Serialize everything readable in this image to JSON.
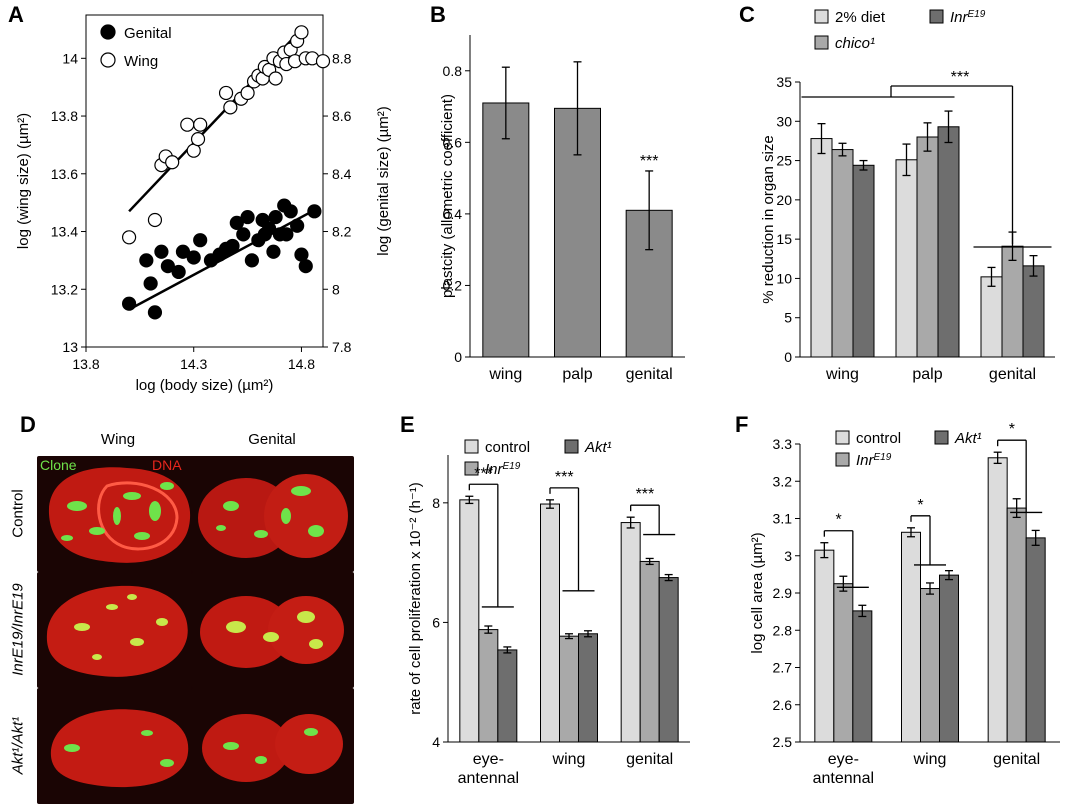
{
  "panel_letters": [
    "A",
    "B",
    "C",
    "D",
    "E",
    "F"
  ],
  "chart_data": [
    {
      "id": "A",
      "type": "scatter",
      "xlabel": "log (body size) (µm²)",
      "ylabel": "log (wing size) (µm²)",
      "y2label": "log (genital size) (µm²)",
      "xlim": [
        13.8,
        14.9
      ],
      "xticks": [
        "13.8",
        "14.3",
        "14.8"
      ],
      "xtick_values": [
        13.8,
        14.3,
        14.8
      ],
      "ylim": [
        13,
        14.15
      ],
      "yticks": [
        "13",
        "13.2",
        "13.4",
        "13.6",
        "13.8",
        "14"
      ],
      "ytick_values": [
        13,
        13.2,
        13.4,
        13.6,
        13.8,
        14
      ],
      "y2lim": [
        7.8,
        8.95
      ],
      "y2ticks": [
        "7.8",
        "8",
        "8.2",
        "8.4",
        "8.6",
        "8.8"
      ],
      "y2tick_values": [
        7.8,
        8,
        8.2,
        8.4,
        8.6,
        8.8
      ],
      "legend": "top-left",
      "series": [
        {
          "name": "Genital",
          "marker": "filled",
          "axis": "right",
          "x": [
            14.0,
            14.08,
            14.1,
            14.12,
            14.15,
            14.18,
            14.23,
            14.25,
            14.3,
            14.33,
            14.38,
            14.42,
            14.45,
            14.48,
            14.5,
            14.53,
            14.55,
            14.57,
            14.6,
            14.62,
            14.63,
            14.65,
            14.67,
            14.68,
            14.7,
            14.72,
            14.73,
            14.75,
            14.78,
            14.8,
            14.82,
            14.86
          ],
          "y": [
            7.95,
            8.1,
            8.02,
            7.92,
            8.13,
            8.08,
            8.06,
            8.13,
            8.11,
            8.17,
            8.1,
            8.12,
            8.14,
            8.15,
            8.23,
            8.19,
            8.25,
            8.1,
            8.17,
            8.24,
            8.19,
            8.21,
            8.13,
            8.25,
            8.19,
            8.29,
            8.19,
            8.27,
            8.22,
            8.12,
            8.08,
            8.27
          ],
          "fit": [
            [
              14.0,
              7.93
            ],
            [
              14.85,
              8.27
            ]
          ]
        },
        {
          "name": "Wing",
          "marker": "open",
          "axis": "left",
          "x": [
            14.0,
            14.12,
            14.15,
            14.17,
            14.2,
            14.27,
            14.3,
            14.32,
            14.33,
            14.45,
            14.47,
            14.52,
            14.55,
            14.58,
            14.6,
            14.62,
            14.63,
            14.65,
            14.67,
            14.68,
            14.7,
            14.72,
            14.73,
            14.75,
            14.77,
            14.78,
            14.8,
            14.82,
            14.85,
            14.9
          ],
          "y": [
            13.38,
            13.44,
            13.63,
            13.66,
            13.64,
            13.77,
            13.68,
            13.72,
            13.77,
            13.88,
            13.83,
            13.86,
            13.88,
            13.92,
            13.94,
            13.93,
            13.97,
            13.96,
            14.0,
            13.93,
            13.99,
            14.02,
            13.98,
            14.03,
            13.99,
            14.06,
            14.09,
            14.0,
            14.0,
            13.99
          ],
          "fit": [
            [
              14.0,
              13.47
            ],
            [
              14.8,
              14.1
            ]
          ]
        }
      ]
    },
    {
      "id": "B",
      "type": "bar",
      "categories": [
        "wing",
        "palp",
        "genital"
      ],
      "values": [
        0.71,
        0.695,
        0.41
      ],
      "errors": [
        0.1,
        0.13,
        0.11
      ],
      "ylabel": "plastcity (allometric coefficient)",
      "ylim": [
        0,
        0.9
      ],
      "yticks": [
        "0",
        "0.2",
        "0.4",
        "0.6",
        "0.8"
      ],
      "ytick_values": [
        0,
        0.2,
        0.4,
        0.6,
        0.8
      ],
      "color": "#8a8a8a",
      "annotations": [
        {
          "text": "***",
          "category": "genital"
        }
      ]
    },
    {
      "id": "C",
      "type": "bar",
      "categories": [
        "wing",
        "palp",
        "genital"
      ],
      "ylabel": "% reduction in organ size",
      "ylim": [
        0,
        35
      ],
      "yticks": [
        "0",
        "5",
        "10",
        "15",
        "20",
        "25",
        "30",
        "35"
      ],
      "ytick_values": [
        0,
        5,
        10,
        15,
        20,
        25,
        30,
        35
      ],
      "legend": "top",
      "series": [
        {
          "name": "2% diet",
          "values": [
            27.8,
            25.1,
            10.2
          ],
          "errors": [
            1.9,
            2.0,
            1.2
          ],
          "color": "#dcdcdc"
        },
        {
          "name": "chico¹",
          "values": [
            26.4,
            28.0,
            14.1
          ],
          "errors": [
            0.8,
            1.8,
            1.8
          ],
          "color": "#a9a9a9"
        },
        {
          "name": "InrE19",
          "values": [
            24.4,
            29.3,
            11.6
          ],
          "errors": [
            0.6,
            2.0,
            1.3
          ],
          "color": "#6e6e6e"
        }
      ],
      "annotations": [
        {
          "text": "***"
        }
      ]
    },
    {
      "id": "E",
      "type": "bar",
      "categories": [
        "eye-\nantennal",
        "wing",
        "genital"
      ],
      "ylabel": "rate of cell proliferation x 10⁻² (h⁻¹)",
      "ylim": [
        4,
        8.8
      ],
      "yticks": [
        "4",
        "6",
        "8"
      ],
      "ytick_values": [
        4,
        6,
        8
      ],
      "legend": "top",
      "series": [
        {
          "name": "control",
          "values": [
            8.05,
            7.98,
            7.67
          ],
          "errors": [
            0.06,
            0.07,
            0.09
          ],
          "color": "#dcdcdc"
        },
        {
          "name": "InrE19",
          "values": [
            5.88,
            5.77,
            7.02
          ],
          "errors": [
            0.06,
            0.04,
            0.05
          ],
          "color": "#a9a9a9"
        },
        {
          "name": "Akt¹",
          "values": [
            5.54,
            5.81,
            6.75
          ],
          "errors": [
            0.05,
            0.05,
            0.05
          ],
          "color": "#6e6e6e"
        }
      ],
      "annotations": [
        {
          "text": "***"
        },
        {
          "text": "***"
        },
        {
          "text": "***"
        }
      ]
    },
    {
      "id": "F",
      "type": "bar",
      "categories": [
        "eye-\nantennal",
        "wing",
        "genital"
      ],
      "ylabel": "log cell area (µm²)",
      "ylim": [
        2.5,
        3.3
      ],
      "yticks": [
        "2.5",
        "2.6",
        "2.7",
        "2.8",
        "2.9",
        "3",
        "3.1",
        "3.2",
        "3.3"
      ],
      "ytick_values": [
        2.5,
        2.6,
        2.7,
        2.8,
        2.9,
        3.0,
        3.1,
        3.2,
        3.3
      ],
      "legend": "top",
      "series": [
        {
          "name": "control",
          "values": [
            3.015,
            3.063,
            3.263
          ],
          "errors": [
            0.02,
            0.012,
            0.015
          ],
          "color": "#dcdcdc"
        },
        {
          "name": "InrE19",
          "values": [
            2.925,
            2.912,
            3.128
          ],
          "errors": [
            0.02,
            0.015,
            0.025
          ],
          "color": "#a9a9a9"
        },
        {
          "name": "Akt¹",
          "values": [
            2.852,
            2.948,
            3.048
          ],
          "errors": [
            0.015,
            0.012,
            0.02
          ],
          "color": "#6e6e6e"
        }
      ],
      "annotations": [
        {
          "text": "*"
        },
        {
          "text": "*"
        },
        {
          "text": "*"
        }
      ]
    }
  ],
  "panel_D": {
    "col_labels": [
      "Wing",
      "Genital"
    ],
    "overlay_labels": [
      "Clone",
      "DNA"
    ],
    "overlay_colors": {
      "clone": "#6fe34a",
      "dna": "#e8261d"
    },
    "row_labels": [
      "Control",
      "InrE19/InrE19",
      "Akt¹/Akt¹"
    ]
  }
}
